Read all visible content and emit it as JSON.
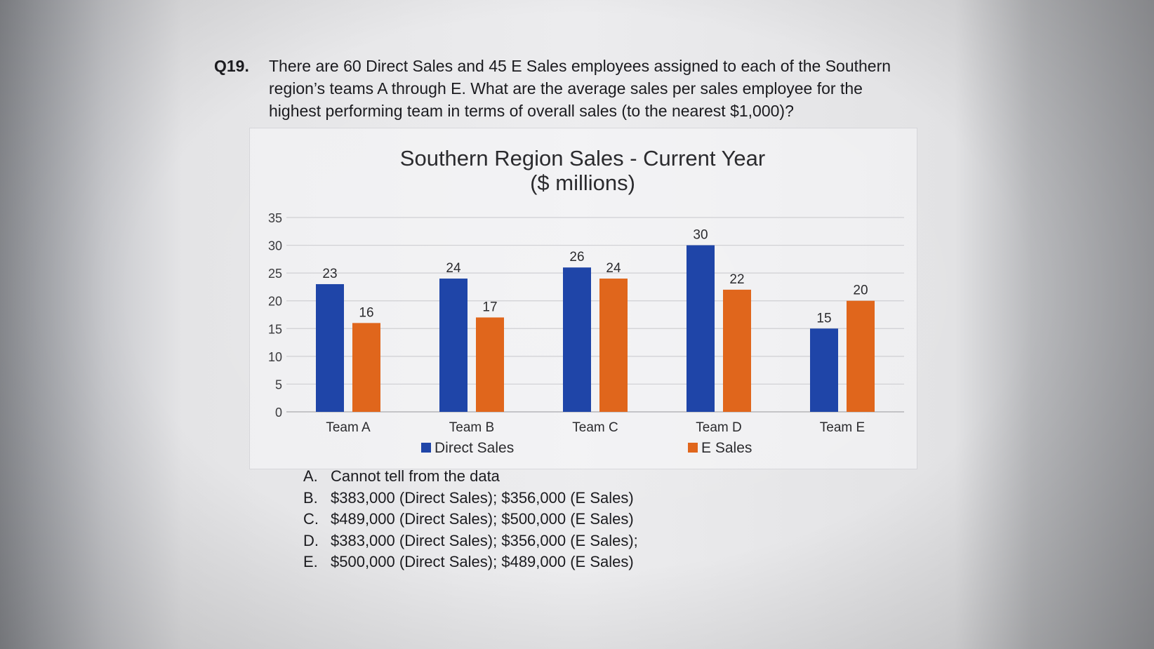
{
  "question": {
    "number": "Q19.",
    "text": "There are 60 Direct Sales and 45 E Sales employees assigned to each of the Southern region’s teams A through E. What are the average sales per sales employee for the highest performing team in terms of overall sales (to the nearest $1,000)?"
  },
  "chart_data": {
    "type": "bar",
    "title_line1": "Southern Region Sales - Current Year",
    "title_line2": "($ millions)",
    "categories": [
      "Team A",
      "Team B",
      "Team C",
      "Team D",
      "Team E"
    ],
    "series": [
      {
        "name": "Direct Sales",
        "values": [
          23,
          24,
          26,
          30,
          15
        ],
        "color": "#1f45a8"
      },
      {
        "name": "E Sales",
        "values": [
          16,
          17,
          24,
          22,
          20
        ],
        "color": "#e0661c"
      }
    ],
    "ylim": [
      0,
      35
    ],
    "yticks": [
      0,
      5,
      10,
      15,
      20,
      25,
      30,
      35
    ],
    "grid": true,
    "data_labels": true,
    "legend_position": "bottom"
  },
  "answers": [
    {
      "letter": "A.",
      "text": "Cannot tell from the data"
    },
    {
      "letter": "B.",
      "text": "$383,000 (Direct Sales); $356,000 (E Sales)"
    },
    {
      "letter": "C.",
      "text": "$489,000 (Direct Sales); $500,000 (E Sales)"
    },
    {
      "letter": "D.",
      "text": "$383,000 (Direct Sales); $356,000 (E Sales);"
    },
    {
      "letter": "E.",
      "text": "$500,000 (Direct Sales); $489,000 (E Sales)"
    }
  ]
}
